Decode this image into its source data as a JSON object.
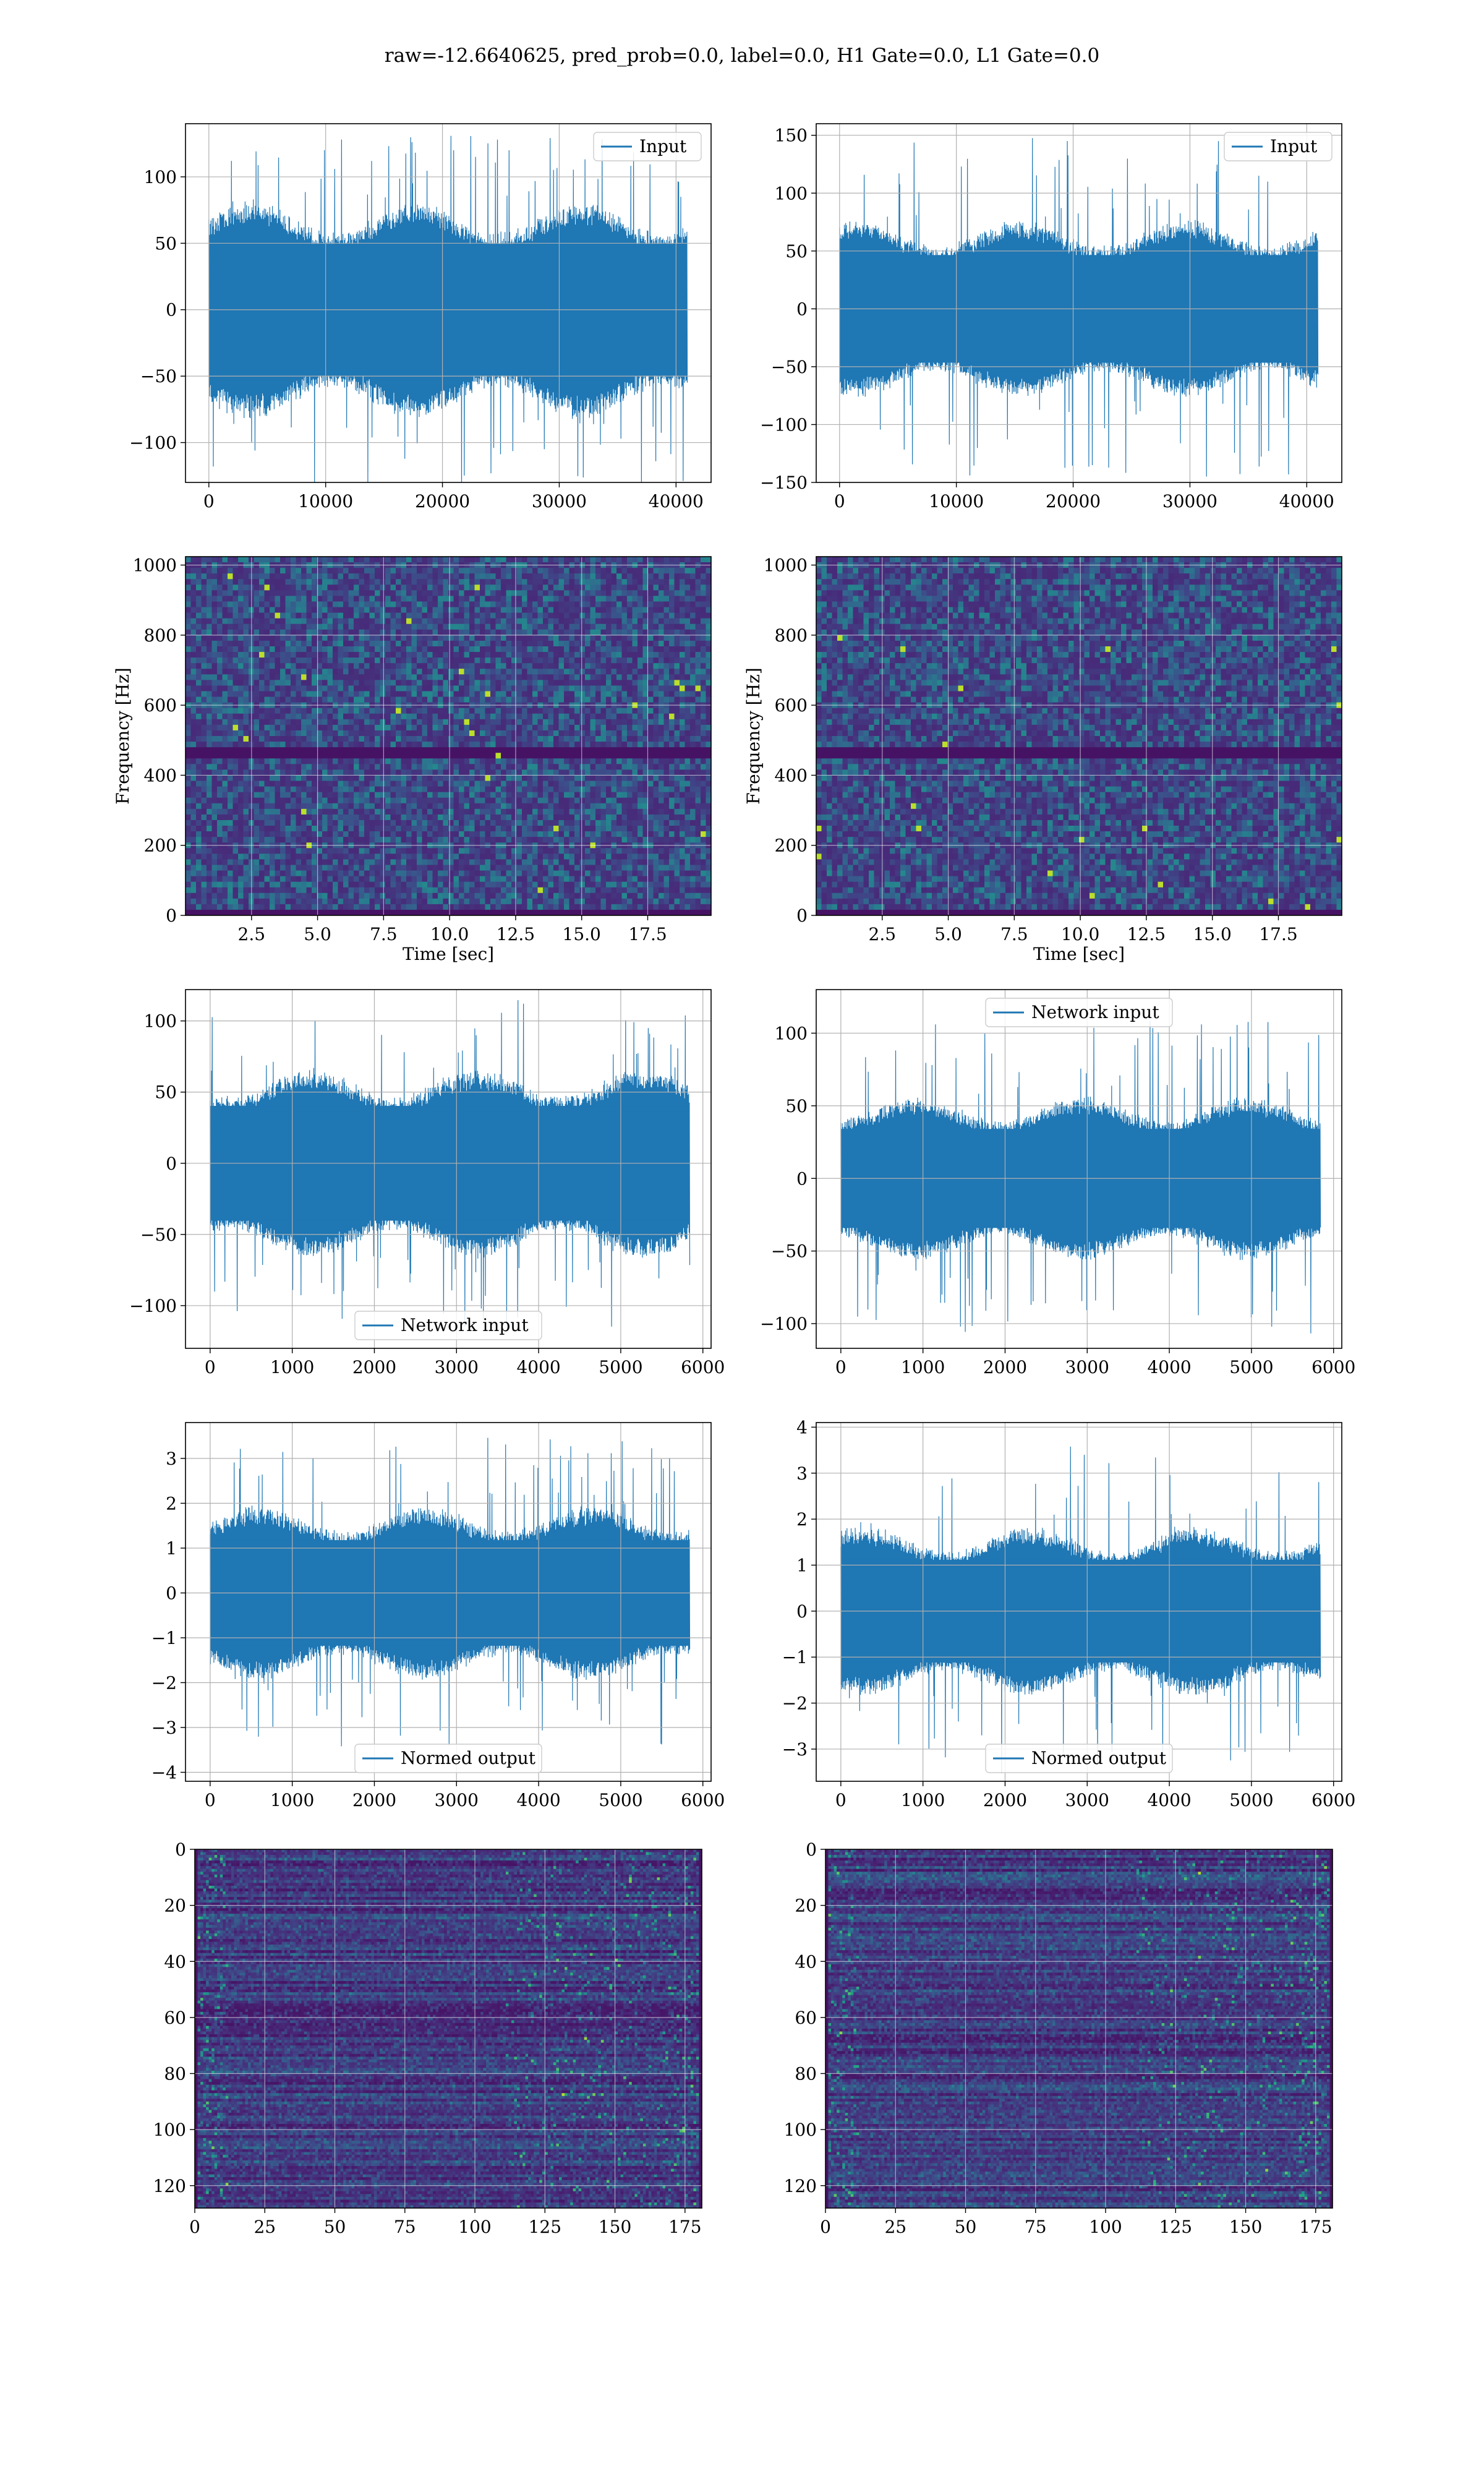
{
  "figure": {
    "suptitle": "raw=-12.6640625, pred_prob=0.0, label=0.0, H1 Gate=0.0, L1 Gate=0.0"
  },
  "colors": {
    "line": "#1f77b4",
    "grid": "#b0b0b0",
    "spectrogram_low": "#440154",
    "spectrogram_high": "#fde725"
  },
  "chart_data": [
    {
      "type": "line",
      "grid": true,
      "series": [
        {
          "name": "Input"
        }
      ],
      "legend": "upper right",
      "xlim": [
        -2000,
        43000
      ],
      "ylim": [
        -130,
        140
      ],
      "x_range": [
        0,
        40960
      ],
      "amplitude": {
        "typical": 80,
        "peak": 135
      },
      "xticks": [
        0,
        10000,
        20000,
        30000,
        40000
      ],
      "xtick_labels": [
        "0",
        "10000",
        "20000",
        "30000",
        "40000"
      ],
      "yticks": [
        -100,
        -50,
        0,
        50,
        100
      ],
      "ytick_labels": [
        "−100",
        "−50",
        "0",
        "50",
        "100"
      ],
      "xlabel": "",
      "ylabel": ""
    },
    {
      "type": "line",
      "grid": true,
      "series": [
        {
          "name": "Input"
        }
      ],
      "legend": "upper right",
      "xlim": [
        -2000,
        43000
      ],
      "ylim": [
        -150,
        160
      ],
      "x_range": [
        0,
        40960
      ],
      "amplitude": {
        "typical": 75,
        "peak": 148
      },
      "xticks": [
        0,
        10000,
        20000,
        30000,
        40000
      ],
      "xtick_labels": [
        "0",
        "10000",
        "20000",
        "30000",
        "40000"
      ],
      "yticks": [
        -150,
        -100,
        -50,
        0,
        50,
        100,
        150
      ],
      "ytick_labels": [
        "−150",
        "−100",
        "−50",
        "0",
        "50",
        "100",
        "150"
      ],
      "xlabel": "",
      "ylabel": ""
    },
    {
      "type": "heatmap",
      "grid": true,
      "xlim": [
        0,
        19.9
      ],
      "ylim": [
        0,
        1024
      ],
      "xticks": [
        2.5,
        5.0,
        7.5,
        10.0,
        12.5,
        15.0,
        17.5
      ],
      "xtick_labels": [
        "2.5",
        "5.0",
        "7.5",
        "10.0",
        "12.5",
        "15.0",
        "17.5"
      ],
      "yticks": [
        0,
        200,
        400,
        600,
        800,
        1000
      ],
      "ytick_labels": [
        "0",
        "200",
        "400",
        "600",
        "800",
        "1000"
      ],
      "xlabel": "Time [sec]",
      "ylabel": "Frequency [Hz]",
      "colormap": "viridis"
    },
    {
      "type": "heatmap",
      "grid": true,
      "xlim": [
        0,
        19.9
      ],
      "ylim": [
        0,
        1024
      ],
      "xticks": [
        2.5,
        5.0,
        7.5,
        10.0,
        12.5,
        15.0,
        17.5
      ],
      "xtick_labels": [
        "2.5",
        "5.0",
        "7.5",
        "10.0",
        "12.5",
        "15.0",
        "17.5"
      ],
      "yticks": [
        0,
        200,
        400,
        600,
        800,
        1000
      ],
      "ytick_labels": [
        "0",
        "200",
        "400",
        "600",
        "800",
        "1000"
      ],
      "xlabel": "Time [sec]",
      "ylabel": "Frequency [Hz]",
      "colormap": "viridis"
    },
    {
      "type": "line",
      "grid": true,
      "series": [
        {
          "name": "Network input"
        }
      ],
      "legend": "lower center",
      "xlim": [
        -300,
        6100
      ],
      "ylim": [
        -130,
        122
      ],
      "x_range": [
        0,
        5840
      ],
      "amplitude": {
        "typical": 65,
        "peak": 115
      },
      "xticks": [
        0,
        1000,
        2000,
        3000,
        4000,
        5000,
        6000
      ],
      "xtick_labels": [
        "0",
        "1000",
        "2000",
        "3000",
        "4000",
        "5000",
        "6000"
      ],
      "yticks": [
        -100,
        -50,
        0,
        50,
        100
      ],
      "ytick_labels": [
        "−100",
        "−50",
        "0",
        "50",
        "100"
      ],
      "xlabel": "",
      "ylabel": ""
    },
    {
      "type": "line",
      "grid": true,
      "series": [
        {
          "name": "Network input"
        }
      ],
      "legend": "upper center",
      "xlim": [
        -300,
        6100
      ],
      "ylim": [
        -117,
        130
      ],
      "x_range": [
        0,
        5840
      ],
      "amplitude": {
        "typical": 55,
        "peak": 110
      },
      "xticks": [
        0,
        1000,
        2000,
        3000,
        4000,
        5000,
        6000
      ],
      "xtick_labels": [
        "0",
        "1000",
        "2000",
        "3000",
        "4000",
        "5000",
        "6000"
      ],
      "yticks": [
        -100,
        -50,
        0,
        50,
        100
      ],
      "ytick_labels": [
        "−100",
        "−50",
        "0",
        "50",
        "100"
      ],
      "xlabel": "",
      "ylabel": ""
    },
    {
      "type": "line",
      "grid": true,
      "series": [
        {
          "name": "Normed output"
        }
      ],
      "legend": "lower center",
      "xlim": [
        -300,
        6100
      ],
      "ylim": [
        -4.2,
        3.8
      ],
      "x_range": [
        0,
        5840
      ],
      "amplitude": {
        "typical": 1.9,
        "peak": 3.5
      },
      "xticks": [
        0,
        1000,
        2000,
        3000,
        4000,
        5000,
        6000
      ],
      "xtick_labels": [
        "0",
        "1000",
        "2000",
        "3000",
        "4000",
        "5000",
        "6000"
      ],
      "yticks": [
        -4,
        -3,
        -2,
        -1,
        0,
        1,
        2,
        3
      ],
      "ytick_labels": [
        "−4",
        "−3",
        "−2",
        "−1",
        "0",
        "1",
        "2",
        "3"
      ],
      "xlabel": "",
      "ylabel": ""
    },
    {
      "type": "line",
      "grid": true,
      "series": [
        {
          "name": "Normed output"
        }
      ],
      "legend": "lower center",
      "xlim": [
        -300,
        6100
      ],
      "ylim": [
        -3.7,
        4.1
      ],
      "x_range": [
        0,
        5840
      ],
      "amplitude": {
        "typical": 1.8,
        "peak": 3.6
      },
      "xticks": [
        0,
        1000,
        2000,
        3000,
        4000,
        5000,
        6000
      ],
      "xtick_labels": [
        "0",
        "1000",
        "2000",
        "3000",
        "4000",
        "5000",
        "6000"
      ],
      "yticks": [
        -3,
        -2,
        -1,
        0,
        1,
        2,
        3,
        4
      ],
      "ytick_labels": [
        "−3",
        "−2",
        "−1",
        "0",
        "1",
        "2",
        "3",
        "4"
      ],
      "xlabel": "",
      "ylabel": ""
    },
    {
      "type": "heatmap",
      "grid": true,
      "xlim": [
        0,
        181
      ],
      "ylim": [
        128,
        0
      ],
      "xticks": [
        0,
        25,
        50,
        75,
        100,
        125,
        150,
        175
      ],
      "xtick_labels": [
        "0",
        "25",
        "50",
        "75",
        "100",
        "125",
        "150",
        "175"
      ],
      "yticks": [
        0,
        20,
        40,
        60,
        80,
        100,
        120
      ],
      "ytick_labels": [
        "0",
        "20",
        "40",
        "60",
        "80",
        "100",
        "120"
      ],
      "xlabel": "",
      "ylabel": "",
      "colormap": "viridis"
    },
    {
      "type": "heatmap",
      "grid": true,
      "xlim": [
        0,
        181
      ],
      "ylim": [
        128,
        0
      ],
      "xticks": [
        0,
        25,
        50,
        75,
        100,
        125,
        150,
        175
      ],
      "xtick_labels": [
        "0",
        "25",
        "50",
        "75",
        "100",
        "125",
        "150",
        "175"
      ],
      "yticks": [
        0,
        20,
        40,
        60,
        80,
        100,
        120
      ],
      "ytick_labels": [
        "0",
        "20",
        "40",
        "60",
        "80",
        "100",
        "120"
      ],
      "xlabel": "",
      "ylabel": "",
      "colormap": "viridis"
    }
  ]
}
